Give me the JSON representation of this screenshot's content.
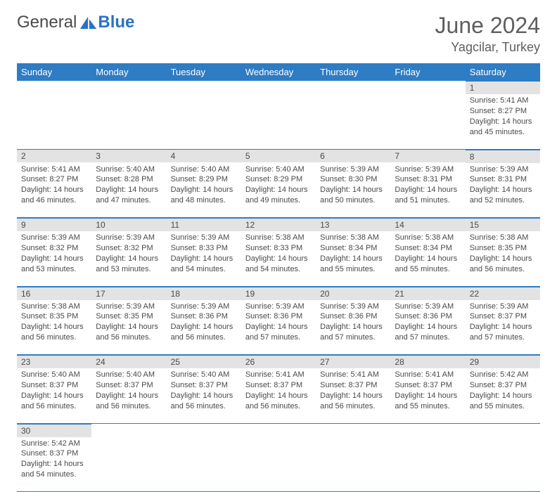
{
  "logo": {
    "general": "General",
    "blue": "Blue"
  },
  "title": "June 2024",
  "location": "Yagcilar, Turkey",
  "colors": {
    "header_bg": "#2e7cc4",
    "header_text": "#ffffff",
    "daynum_bg": "#e3e3e3",
    "text": "#4a4a4a",
    "border": "#2e7cc4"
  },
  "daysOfWeek": [
    "Sunday",
    "Monday",
    "Tuesday",
    "Wednesday",
    "Thursday",
    "Friday",
    "Saturday"
  ],
  "startOffset": 6,
  "days": [
    {
      "n": 1,
      "sr": "5:41 AM",
      "ss": "8:27 PM",
      "dl": "14 hours and 45 minutes."
    },
    {
      "n": 2,
      "sr": "5:41 AM",
      "ss": "8:27 PM",
      "dl": "14 hours and 46 minutes."
    },
    {
      "n": 3,
      "sr": "5:40 AM",
      "ss": "8:28 PM",
      "dl": "14 hours and 47 minutes."
    },
    {
      "n": 4,
      "sr": "5:40 AM",
      "ss": "8:29 PM",
      "dl": "14 hours and 48 minutes."
    },
    {
      "n": 5,
      "sr": "5:40 AM",
      "ss": "8:29 PM",
      "dl": "14 hours and 49 minutes."
    },
    {
      "n": 6,
      "sr": "5:39 AM",
      "ss": "8:30 PM",
      "dl": "14 hours and 50 minutes."
    },
    {
      "n": 7,
      "sr": "5:39 AM",
      "ss": "8:31 PM",
      "dl": "14 hours and 51 minutes."
    },
    {
      "n": 8,
      "sr": "5:39 AM",
      "ss": "8:31 PM",
      "dl": "14 hours and 52 minutes."
    },
    {
      "n": 9,
      "sr": "5:39 AM",
      "ss": "8:32 PM",
      "dl": "14 hours and 53 minutes."
    },
    {
      "n": 10,
      "sr": "5:39 AM",
      "ss": "8:32 PM",
      "dl": "14 hours and 53 minutes."
    },
    {
      "n": 11,
      "sr": "5:39 AM",
      "ss": "8:33 PM",
      "dl": "14 hours and 54 minutes."
    },
    {
      "n": 12,
      "sr": "5:38 AM",
      "ss": "8:33 PM",
      "dl": "14 hours and 54 minutes."
    },
    {
      "n": 13,
      "sr": "5:38 AM",
      "ss": "8:34 PM",
      "dl": "14 hours and 55 minutes."
    },
    {
      "n": 14,
      "sr": "5:38 AM",
      "ss": "8:34 PM",
      "dl": "14 hours and 55 minutes."
    },
    {
      "n": 15,
      "sr": "5:38 AM",
      "ss": "8:35 PM",
      "dl": "14 hours and 56 minutes."
    },
    {
      "n": 16,
      "sr": "5:38 AM",
      "ss": "8:35 PM",
      "dl": "14 hours and 56 minutes."
    },
    {
      "n": 17,
      "sr": "5:39 AM",
      "ss": "8:35 PM",
      "dl": "14 hours and 56 minutes."
    },
    {
      "n": 18,
      "sr": "5:39 AM",
      "ss": "8:36 PM",
      "dl": "14 hours and 56 minutes."
    },
    {
      "n": 19,
      "sr": "5:39 AM",
      "ss": "8:36 PM",
      "dl": "14 hours and 57 minutes."
    },
    {
      "n": 20,
      "sr": "5:39 AM",
      "ss": "8:36 PM",
      "dl": "14 hours and 57 minutes."
    },
    {
      "n": 21,
      "sr": "5:39 AM",
      "ss": "8:36 PM",
      "dl": "14 hours and 57 minutes."
    },
    {
      "n": 22,
      "sr": "5:39 AM",
      "ss": "8:37 PM",
      "dl": "14 hours and 57 minutes."
    },
    {
      "n": 23,
      "sr": "5:40 AM",
      "ss": "8:37 PM",
      "dl": "14 hours and 56 minutes."
    },
    {
      "n": 24,
      "sr": "5:40 AM",
      "ss": "8:37 PM",
      "dl": "14 hours and 56 minutes."
    },
    {
      "n": 25,
      "sr": "5:40 AM",
      "ss": "8:37 PM",
      "dl": "14 hours and 56 minutes."
    },
    {
      "n": 26,
      "sr": "5:41 AM",
      "ss": "8:37 PM",
      "dl": "14 hours and 56 minutes."
    },
    {
      "n": 27,
      "sr": "5:41 AM",
      "ss": "8:37 PM",
      "dl": "14 hours and 56 minutes."
    },
    {
      "n": 28,
      "sr": "5:41 AM",
      "ss": "8:37 PM",
      "dl": "14 hours and 55 minutes."
    },
    {
      "n": 29,
      "sr": "5:42 AM",
      "ss": "8:37 PM",
      "dl": "14 hours and 55 minutes."
    },
    {
      "n": 30,
      "sr": "5:42 AM",
      "ss": "8:37 PM",
      "dl": "14 hours and 54 minutes."
    }
  ],
  "labels": {
    "sunrise": "Sunrise:",
    "sunset": "Sunset:",
    "daylight": "Daylight:"
  }
}
